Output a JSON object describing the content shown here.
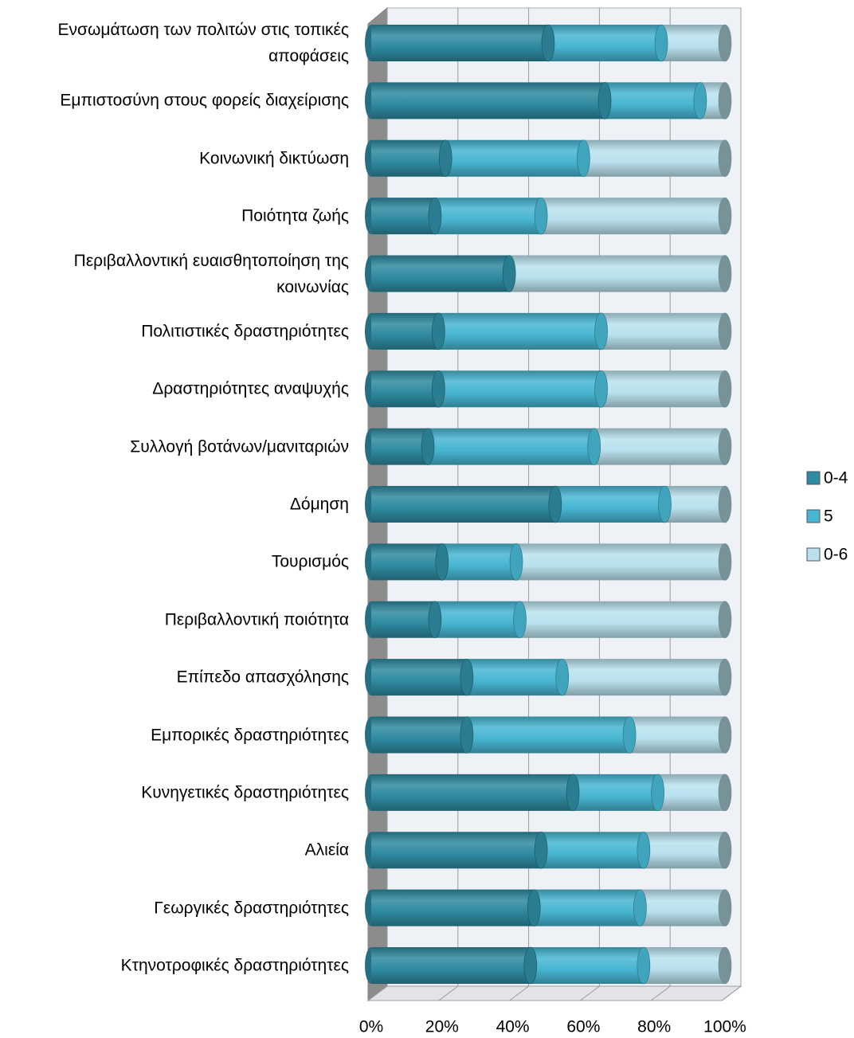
{
  "chart_data": {
    "type": "bar",
    "horizontal": true,
    "stacked": true,
    "categories": [
      "Ενσωμάτωση των πολιτών στις τοπικές αποφάσεις",
      "Εμπιστοσύνη στους φορείς διαχείρισης",
      "Κοινωνική δικτύωση",
      "Ποιότητα ζωής",
      "Περιβαλλοντική ευαισθητοποίηση της κοινωνίας",
      "Πολιτιστικές δραστηριότητες",
      "Δραστηριότητες αναψυχής",
      "Συλλογή βοτάνων/μανιταριών",
      "Δόμηση",
      "Τουρισμός",
      "Περιβαλλοντική ποιότητα",
      "Επίπεδο απασχόλησης",
      "Εμπορικές δραστηριότητες",
      "Κυνηγετικές δραστηριότητες",
      "Αλιεία",
      "Γεωργικές δραστηριότητες",
      "Κτηνοτροφικές δραστηριότητες"
    ],
    "series": [
      {
        "name": "0-4",
        "color": "#2f8aa1",
        "values": [
          50,
          66,
          21,
          18,
          39,
          19,
          19,
          16,
          52,
          20,
          18,
          27,
          27,
          57,
          48,
          46,
          45
        ]
      },
      {
        "name": "5",
        "color": "#48b6d2",
        "values": [
          32,
          27,
          39,
          30,
          0,
          46,
          46,
          47,
          31,
          21,
          24,
          27,
          46,
          24,
          29,
          30,
          32
        ]
      },
      {
        "name": "0-6",
        "color": "#b9e1ed",
        "values": [
          18,
          7,
          40,
          52,
          61,
          35,
          35,
          37,
          17,
          59,
          58,
          46,
          27,
          19,
          23,
          24,
          23
        ]
      }
    ],
    "xlim": [
      0,
      100
    ],
    "xticks": [
      {
        "value": 0,
        "label": "0%"
      },
      {
        "value": 20,
        "label": "20%"
      },
      {
        "value": 40,
        "label": "40%"
      },
      {
        "value": 60,
        "label": "60%"
      },
      {
        "value": 80,
        "label": "80%"
      },
      {
        "value": 100,
        "label": "100%"
      }
    ],
    "grid": true,
    "legend": "right"
  }
}
